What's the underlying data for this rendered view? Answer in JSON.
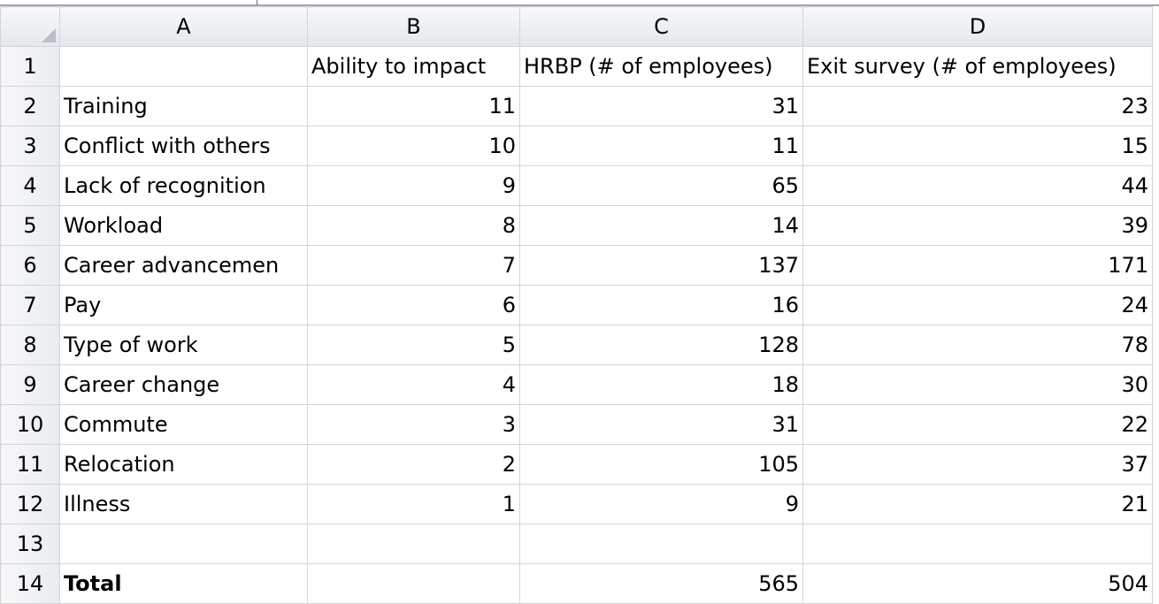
{
  "columns": [
    "A",
    "B",
    "C",
    "D"
  ],
  "rows": [
    {
      "num": "1",
      "a": "",
      "b": "Ability to impact",
      "c": "HRBP (# of employees)",
      "d": "Exit survey (# of employees)"
    },
    {
      "num": "2",
      "a": "Training",
      "b": "11",
      "c": "31",
      "d": "23"
    },
    {
      "num": "3",
      "a": "Conflict with others",
      "b": "10",
      "c": "11",
      "d": "15"
    },
    {
      "num": "4",
      "a": "Lack of recognition",
      "b": "9",
      "c": "65",
      "d": "44"
    },
    {
      "num": "5",
      "a": "Workload",
      "b": "8",
      "c": "14",
      "d": "39"
    },
    {
      "num": "6",
      "a": "Career advancemen",
      "b": "7",
      "c": "137",
      "d": "171"
    },
    {
      "num": "7",
      "a": "Pay",
      "b": "6",
      "c": "16",
      "d": "24"
    },
    {
      "num": "8",
      "a": "Type of work",
      "b": "5",
      "c": "128",
      "d": "78"
    },
    {
      "num": "9",
      "a": "Career change",
      "b": "4",
      "c": "18",
      "d": "30"
    },
    {
      "num": "10",
      "a": "Commute",
      "b": "3",
      "c": "31",
      "d": "22"
    },
    {
      "num": "11",
      "a": "Relocation",
      "b": "2",
      "c": "105",
      "d": "37"
    },
    {
      "num": "12",
      "a": "Illness",
      "b": "1",
      "c": "9",
      "d": "21"
    },
    {
      "num": "13",
      "a": "",
      "b": "",
      "c": "",
      "d": ""
    },
    {
      "num": "14",
      "a": "Total",
      "b": "",
      "c": "565",
      "d": "504"
    }
  ]
}
